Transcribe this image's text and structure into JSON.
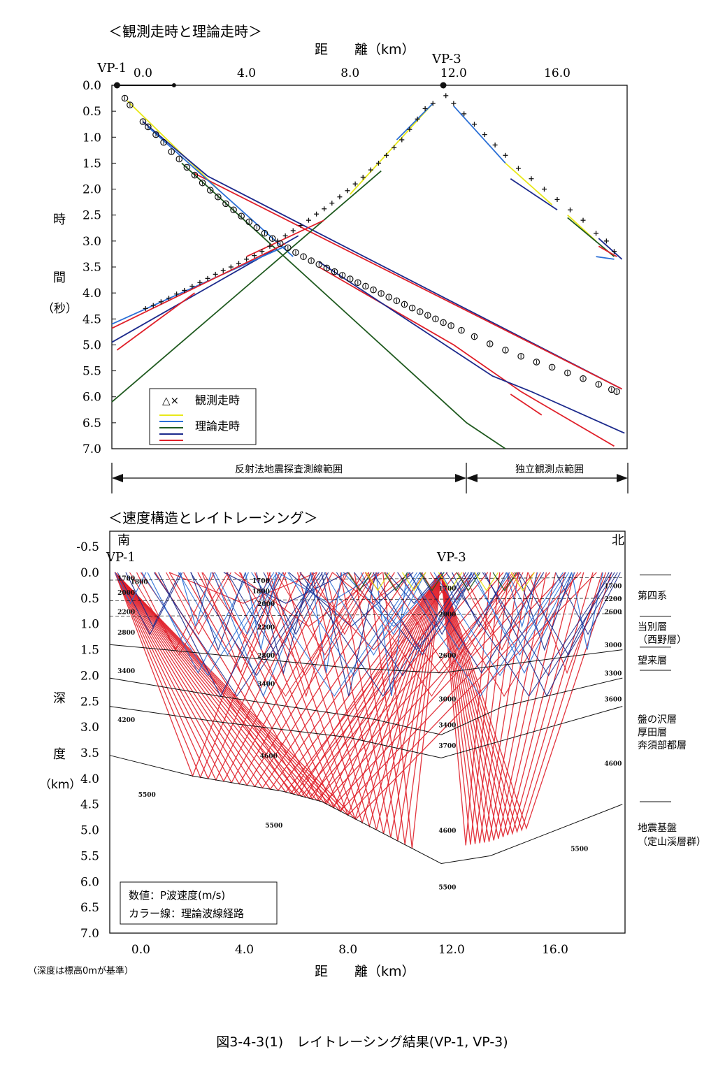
{
  "figure_caption": "図3-4-3(1)　レイトレーシング結果(VP-1, VP-3)",
  "colors": {
    "yellow": "#e8e81a",
    "blue": "#2a6fd6",
    "green": "#1f5a1f",
    "navy": "#1c2a8c",
    "red": "#e0202a",
    "black": "#111111"
  },
  "chart_data": [
    {
      "type": "line",
      "title": "＜観測走時と理論走時＞",
      "xlabel": "距　　離（km）",
      "ylabel_chars": [
        "時",
        "間",
        "（秒）"
      ],
      "xlim": [
        -1.2,
        18.7
      ],
      "ylim": [
        0,
        7
      ],
      "x_ticks": [
        "0.0",
        "4.0",
        "8.0",
        "12.0",
        "16.0"
      ],
      "x_tick_values": [
        0,
        4,
        8,
        12,
        16
      ],
      "y_ticks": [
        "0.0",
        "0.5",
        "1.0",
        "1.5",
        "2.0",
        "2.5",
        "3.0",
        "3.5",
        "4.0",
        "4.5",
        "5.0",
        "5.5",
        "6.0",
        "6.5",
        "7.0"
      ],
      "shot_points": [
        {
          "label": "VP-1",
          "x": -1.0
        },
        {
          "label": "VP-3",
          "x": 11.6
        }
      ],
      "legend": {
        "placement": "bottom-left",
        "observed_label": "観測走時",
        "observed_symbols": "△×",
        "theory_label": "理論走時"
      },
      "observed_vp1": {
        "x": [
          -0.7,
          -0.5,
          0.0,
          0.2,
          0.5,
          0.8,
          1.1,
          1.4,
          1.7,
          2.0,
          2.3,
          2.6,
          2.9,
          3.2,
          3.5,
          3.8,
          4.1,
          4.4,
          4.7,
          5.0,
          5.3,
          5.6,
          5.9,
          6.2,
          6.5,
          6.8,
          7.1,
          7.4,
          7.7,
          8.0,
          8.3,
          8.6,
          8.9,
          9.2,
          9.5,
          9.8,
          10.1,
          10.4,
          10.7,
          11.0,
          11.3,
          11.6,
          11.9,
          12.3,
          12.8,
          13.4,
          14.0,
          14.6,
          15.2,
          15.8,
          16.4,
          17.0,
          17.6,
          18.1,
          18.3
        ],
        "y": [
          0.25,
          0.38,
          0.7,
          0.8,
          0.95,
          1.1,
          1.28,
          1.42,
          1.58,
          1.73,
          1.88,
          2.02,
          2.15,
          2.28,
          2.4,
          2.52,
          2.63,
          2.74,
          2.85,
          2.95,
          3.05,
          3.13,
          3.22,
          3.3,
          3.38,
          3.45,
          3.52,
          3.59,
          3.66,
          3.73,
          3.8,
          3.87,
          3.94,
          4.01,
          4.08,
          4.15,
          4.22,
          4.29,
          4.36,
          4.43,
          4.5,
          4.57,
          4.63,
          4.72,
          4.84,
          4.98,
          5.1,
          5.22,
          5.33,
          5.43,
          5.54,
          5.65,
          5.76,
          5.86,
          5.9
        ]
      },
      "observed_vp3_south": {
        "x": [
          11.2,
          10.9,
          10.6,
          10.3,
          10.0,
          9.7,
          9.4,
          9.1,
          8.8,
          8.5,
          8.2,
          7.9,
          7.6,
          7.3,
          7.0,
          6.7,
          6.4,
          6.1,
          5.8,
          5.5,
          5.2,
          4.9,
          4.6,
          4.3,
          4.0,
          3.7,
          3.4,
          3.1,
          2.8,
          2.5,
          2.2,
          1.9,
          1.6,
          1.3,
          1.0,
          0.7,
          0.4,
          0.1
        ],
        "y": [
          0.35,
          0.45,
          0.65,
          0.85,
          1.05,
          1.2,
          1.35,
          1.5,
          1.63,
          1.77,
          1.9,
          2.03,
          2.15,
          2.27,
          2.38,
          2.48,
          2.6,
          2.7,
          2.8,
          2.9,
          3.0,
          3.1,
          3.2,
          3.28,
          3.35,
          3.43,
          3.5,
          3.57,
          3.64,
          3.72,
          3.8,
          3.87,
          3.95,
          4.02,
          4.1,
          4.17,
          4.24,
          4.3
        ]
      },
      "observed_vp3_north": {
        "x": [
          11.7,
          12.0,
          12.4,
          12.8,
          13.2,
          13.6,
          14.0,
          14.5,
          15.0,
          15.5,
          16.0,
          16.5,
          17.0,
          17.5,
          17.9,
          18.2
        ],
        "y": [
          0.2,
          0.35,
          0.55,
          0.75,
          0.95,
          1.15,
          1.35,
          1.6,
          1.8,
          2.0,
          2.2,
          2.4,
          2.6,
          2.85,
          3.0,
          3.2
        ]
      },
      "theory_lines": [
        {
          "color": "yellow",
          "x": [
            -0.6,
            3.0
          ],
          "y": [
            0.3,
            2.05
          ]
        },
        {
          "color": "navy",
          "x": [
            0.0,
            2.5
          ],
          "y": [
            0.7,
            1.75
          ]
        },
        {
          "color": "navy",
          "x": [
            2.5,
            18.5
          ],
          "y": [
            1.75,
            5.85
          ]
        },
        {
          "color": "red",
          "x": [
            2.0,
            18.5
          ],
          "y": [
            1.7,
            5.85
          ]
        },
        {
          "color": "blue",
          "x": [
            0.2,
            5.8
          ],
          "y": [
            0.8,
            3.3
          ]
        },
        {
          "color": "green",
          "x": [
            1.5,
            12.5,
            14.0
          ],
          "y": [
            1.5,
            6.5,
            7.0
          ]
        },
        {
          "color": "red",
          "x": [
            6.8,
            12.0,
            14.6,
            18.2
          ],
          "y": [
            3.5,
            5.0,
            5.9,
            6.95
          ]
        },
        {
          "color": "navy",
          "x": [
            6.8,
            13.5,
            15.0,
            18.6
          ],
          "y": [
            3.4,
            5.6,
            5.9,
            6.7
          ]
        },
        {
          "color": "red",
          "x": [
            14.2,
            15.4
          ],
          "y": [
            5.95,
            6.35
          ]
        },
        {
          "color": "yellow",
          "x": [
            11.2,
            8.0
          ],
          "y": [
            0.35,
            2.1
          ]
        },
        {
          "color": "blue",
          "x": [
            11.2,
            9.8
          ],
          "y": [
            0.35,
            1.05
          ]
        },
        {
          "color": "green",
          "x": [
            9.2,
            -1.2
          ],
          "y": [
            1.65,
            6.1
          ]
        },
        {
          "color": "red",
          "x": [
            7.0,
            4.0
          ],
          "y": [
            2.6,
            3.3
          ]
        },
        {
          "color": "navy",
          "x": [
            6.0,
            -1.2
          ],
          "y": [
            2.9,
            4.95
          ]
        },
        {
          "color": "blue",
          "x": [
            5.5,
            -1.2
          ],
          "y": [
            3.1,
            4.6
          ]
        },
        {
          "color": "red",
          "x": [
            5.5,
            -1.2
          ],
          "y": [
            3.05,
            4.68
          ]
        },
        {
          "color": "red",
          "x": [
            2.0,
            -1.0
          ],
          "y": [
            4.0,
            5.1
          ]
        },
        {
          "color": "blue",
          "x": [
            12.0,
            14.0
          ],
          "y": [
            0.4,
            1.5
          ]
        },
        {
          "color": "yellow",
          "x": [
            14.0,
            15.8
          ],
          "y": [
            1.5,
            2.3
          ]
        },
        {
          "color": "yellow",
          "x": [
            16.4,
            17.5
          ],
          "y": [
            2.5,
            3.0
          ]
        },
        {
          "color": "green",
          "x": [
            16.4,
            18.2
          ],
          "y": [
            2.55,
            3.3
          ]
        },
        {
          "color": "navy",
          "x": [
            14.2,
            16.0
          ],
          "y": [
            1.8,
            2.4
          ]
        },
        {
          "color": "navy",
          "x": [
            17.6,
            18.5
          ],
          "y": [
            2.95,
            3.35
          ]
        },
        {
          "color": "red",
          "x": [
            17.6,
            18.3
          ],
          "y": [
            3.1,
            3.3
          ]
        },
        {
          "color": "blue",
          "x": [
            17.5,
            18.2
          ],
          "y": [
            3.3,
            3.35
          ]
        }
      ],
      "range_bar": {
        "left_label": "反射法地震探査測線範囲",
        "right_label": "独立観測点範囲",
        "split_x": 12.3
      }
    },
    {
      "type": "table",
      "title": "＜速度構造とレイトレーシング＞",
      "xlabel": "距　　離（km）",
      "ylabel_chars": [
        "深",
        "度",
        "（km）"
      ],
      "xlim": [
        -1.2,
        18.7
      ],
      "ylim": [
        -0.8,
        7.0
      ],
      "x_ticks": [
        "0.0",
        "4.0",
        "8.0",
        "12.0",
        "16.0"
      ],
      "x_tick_values": [
        0,
        4,
        8,
        12,
        16
      ],
      "y_ticks": [
        "-0.5",
        "0.0",
        "0.5",
        "1.0",
        "1.5",
        "2.0",
        "2.5",
        "3.0",
        "3.5",
        "4.0",
        "4.5",
        "5.0",
        "5.5",
        "6.0",
        "6.5",
        "7.0"
      ],
      "direction_labels": {
        "south": "南",
        "north": "北"
      },
      "shot_points": [
        {
          "label": "VP-1",
          "x": -1.0
        },
        {
          "label": "VP-3",
          "x": 11.6
        }
      ],
      "boundaries": [
        {
          "x": [
            -1.2,
            18.6
          ],
          "y": [
            0.15,
            0.1
          ]
        },
        {
          "x": [
            -1.2,
            18.6
          ],
          "y": [
            0.55,
            0.5
          ]
        },
        {
          "x": [
            -1.2,
            18.6
          ],
          "y": [
            0.85,
            0.8
          ]
        },
        {
          "x": [
            -1.2,
            2.0,
            8.0,
            11.6,
            18.6
          ],
          "y": [
            1.4,
            1.55,
            1.85,
            1.95,
            1.5
          ]
        },
        {
          "x": [
            -1.2,
            3.0,
            9.0,
            11.6,
            14.0,
            18.6
          ],
          "y": [
            2.05,
            2.4,
            2.85,
            3.15,
            2.6,
            2.05
          ]
        },
        {
          "x": [
            -1.2,
            3.0,
            8.0,
            11.6,
            18.6
          ],
          "y": [
            2.6,
            2.9,
            3.2,
            3.6,
            2.6
          ]
        },
        {
          "x": [
            -1.2,
            2.0,
            5.5,
            7.0,
            11.6,
            13.5,
            18.6
          ],
          "y": [
            3.55,
            3.95,
            4.25,
            4.45,
            5.65,
            5.5,
            4.5
          ]
        }
      ],
      "velocity_labels": [
        {
          "text": "1700",
          "x": -0.9,
          "y": 0.1
        },
        {
          "text": "1800",
          "x": -0.4,
          "y": 0.17
        },
        {
          "text": "2000",
          "x": -0.9,
          "y": 0.38
        },
        {
          "text": "2200",
          "x": -0.9,
          "y": 0.75
        },
        {
          "text": "2800",
          "x": -0.9,
          "y": 1.15
        },
        {
          "text": "3400",
          "x": -0.9,
          "y": 1.9
        },
        {
          "text": "4200",
          "x": -0.9,
          "y": 2.85
        },
        {
          "text": "5500",
          "x": -0.1,
          "y": 4.3
        },
        {
          "text": "1700",
          "x": 4.3,
          "y": 0.15
        },
        {
          "text": "1800",
          "x": 4.3,
          "y": 0.35
        },
        {
          "text": "2000",
          "x": 4.5,
          "y": 0.6
        },
        {
          "text": "2200",
          "x": 4.5,
          "y": 1.05
        },
        {
          "text": "2800",
          "x": 4.5,
          "y": 1.6
        },
        {
          "text": "3400",
          "x": 4.5,
          "y": 2.15
        },
        {
          "text": "4600",
          "x": 4.6,
          "y": 3.55
        },
        {
          "text": "5500",
          "x": 4.8,
          "y": 4.9
        },
        {
          "text": "1700",
          "x": 11.5,
          "y": 0.3
        },
        {
          "text": "2000",
          "x": 11.5,
          "y": 0.8
        },
        {
          "text": "2600",
          "x": 11.5,
          "y": 1.6
        },
        {
          "text": "3000",
          "x": 11.5,
          "y": 2.45
        },
        {
          "text": "3400",
          "x": 11.5,
          "y": 2.95
        },
        {
          "text": "3700",
          "x": 11.5,
          "y": 3.35
        },
        {
          "text": "4600",
          "x": 11.5,
          "y": 5.0
        },
        {
          "text": "5500",
          "x": 11.5,
          "y": 6.1
        },
        {
          "text": "1700",
          "x": 17.9,
          "y": 0.25
        },
        {
          "text": "2600",
          "x": 17.9,
          "y": 0.75
        },
        {
          "text": "2200",
          "x": 17.9,
          "y": 0.5
        },
        {
          "text": "3000",
          "x": 17.9,
          "y": 1.4
        },
        {
          "text": "3300",
          "x": 17.9,
          "y": 1.95
        },
        {
          "text": "3600",
          "x": 17.9,
          "y": 2.45
        },
        {
          "text": "4600",
          "x": 17.9,
          "y": 3.7
        },
        {
          "text": "5500",
          "x": 16.6,
          "y": 5.35
        }
      ],
      "legend_box": {
        "placement": "bottom-left",
        "line1": "数値：P波速度(m/s)",
        "line2": "カラー線：理論波線経路"
      },
      "formations": [
        {
          "label": "第四系",
          "y": 0.45
        },
        {
          "label": "当別層",
          "y": 1.05
        },
        {
          "label": "（西野層）",
          "y": 1.3
        },
        {
          "label": "望来層",
          "y": 1.7
        },
        {
          "label": "盤の沢層",
          "y": 2.85
        },
        {
          "label": "厚田層",
          "y": 3.1
        },
        {
          "label": "奔須部都層",
          "y": 3.35
        },
        {
          "label": "地震基盤",
          "y": 4.95
        },
        {
          "label": "（定山渓層群）",
          "y": 5.22
        }
      ],
      "formation_ticks": [
        0.05,
        0.85,
        1.45,
        1.9,
        4.45
      ],
      "note": "（深度は標高0mが基準）"
    }
  ]
}
